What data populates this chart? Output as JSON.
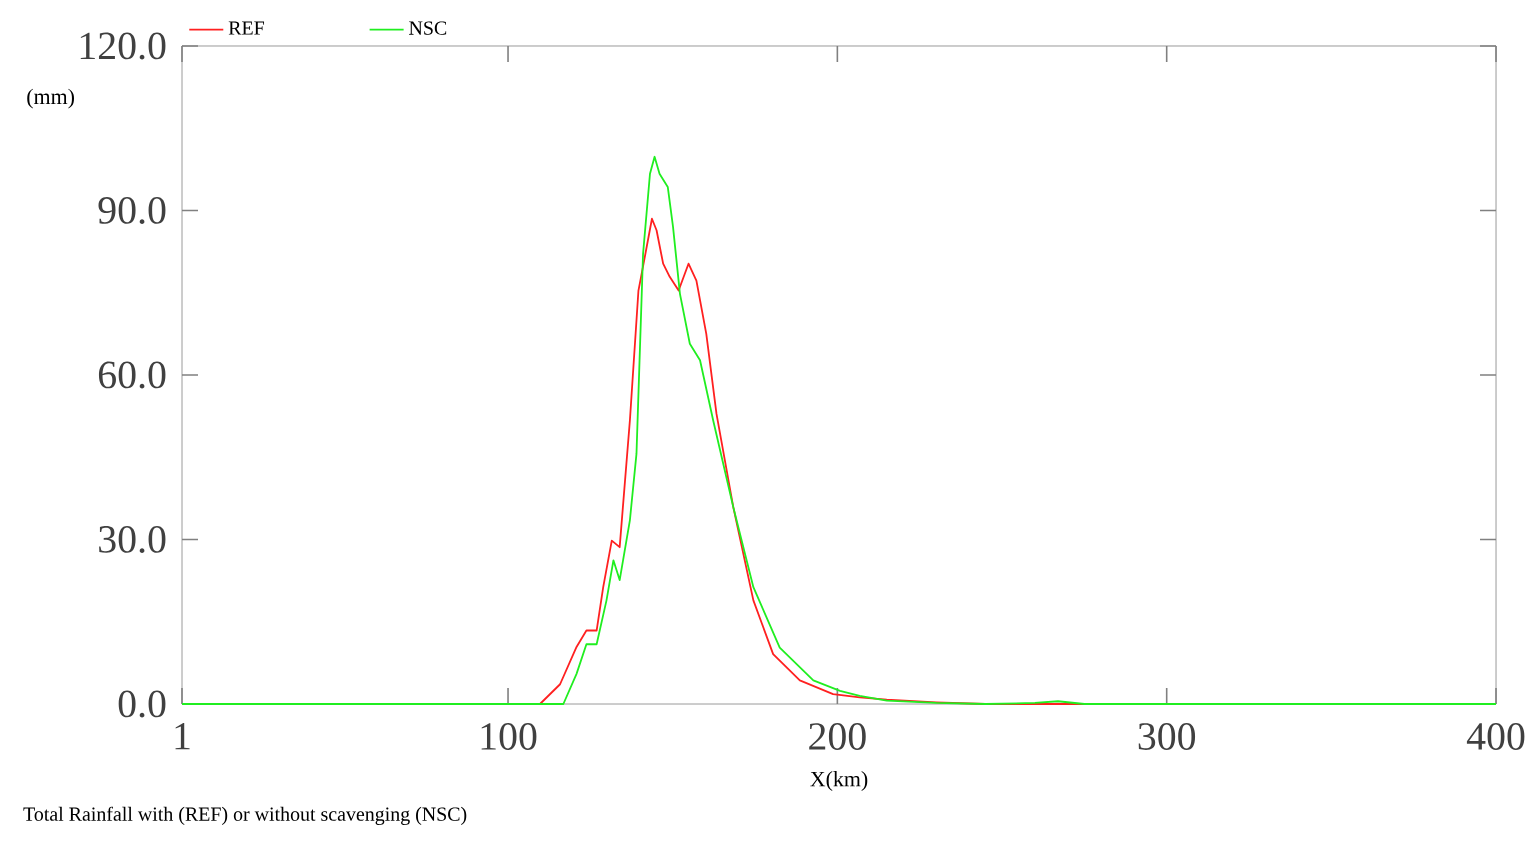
{
  "chart_data": {
    "type": "line",
    "xlabel": "X(km)",
    "ylabel": "(mm)",
    "annotations": [
      "Total Rainfall with (REF) or without scavenging (NSC)"
    ],
    "xlim": [
      1,
      400
    ],
    "ylim": [
      0,
      120
    ],
    "xticks": [
      1,
      100,
      200,
      300,
      400
    ],
    "yticks": [
      {
        "value": 0,
        "label": "0.0"
      },
      {
        "value": 30,
        "label": "30.0"
      },
      {
        "value": 60,
        "label": "60.0"
      },
      {
        "value": 90,
        "label": "90.0"
      },
      {
        "value": 120,
        "label": "120.0"
      }
    ],
    "legend": "top left",
    "grid": false,
    "line_style": "solid",
    "marker": "none",
    "series": [
      {
        "name": "REF",
        "color": "#ff2020",
        "x": [
          1,
          109.7,
          115.8,
          120.8,
          123.8,
          126.9,
          128.9,
          131.5,
          133.9,
          137.0,
          139.6,
          140.4,
          143.7,
          145.1,
          147.1,
          149.1,
          151.8,
          154.8,
          157.2,
          160.2,
          163.3,
          168.4,
          174.5,
          180.5,
          188.6,
          198.7,
          206.8,
          215,
          230,
          245,
          400
        ],
        "values": [
          0,
          0,
          3.6,
          10.4,
          13.4,
          13.4,
          21.3,
          29.8,
          28.6,
          51.7,
          75.4,
          77.9,
          88.5,
          86.4,
          80.3,
          77.9,
          75.4,
          80.3,
          77.2,
          67.5,
          52.9,
          35.9,
          18.9,
          9.1,
          4.3,
          1.8,
          1.2,
          0.8,
          0.3,
          0,
          0
        ]
      },
      {
        "name": "NSC",
        "color": "#20ee20",
        "x": [
          1,
          116.8,
          120.8,
          123.8,
          126.9,
          129.9,
          132.0,
          133.9,
          137.0,
          139.0,
          141.0,
          143.1,
          144.5,
          146.0,
          148.5,
          150.1,
          152.2,
          155.2,
          158.3,
          162.3,
          168.4,
          174.5,
          182.5,
          192.7,
          200.8,
          206.8,
          215,
          230,
          245,
          260,
          267,
          275,
          400
        ],
        "values": [
          0,
          0,
          5.5,
          10.9,
          10.9,
          18.9,
          26.2,
          22.6,
          33.5,
          45.6,
          82.1,
          96.7,
          99.8,
          96.7,
          94.3,
          87.0,
          74.8,
          65.7,
          62.7,
          51.7,
          35.9,
          21.3,
          10.3,
          4.3,
          2.4,
          1.5,
          0.6,
          0.2,
          0,
          0.2,
          0.5,
          0,
          0
        ]
      }
    ]
  }
}
